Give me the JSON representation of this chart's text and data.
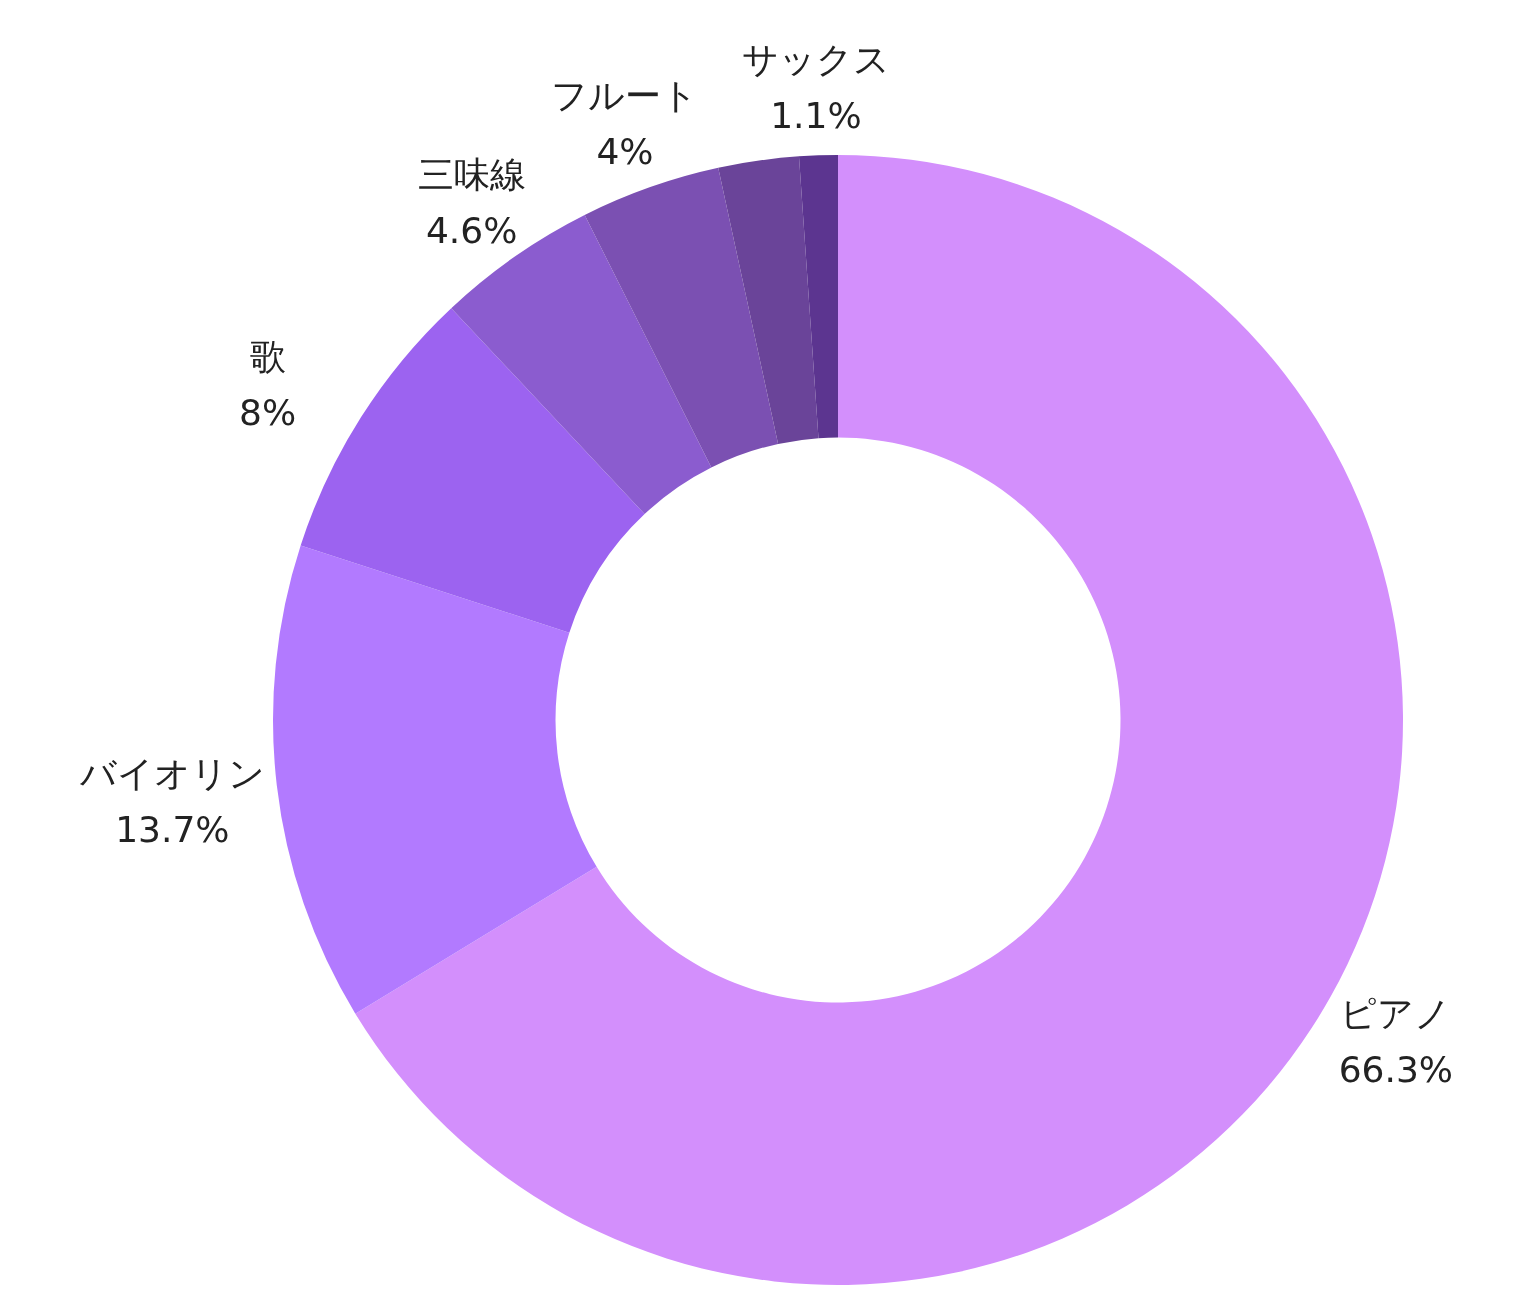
{
  "chart_data": {
    "type": "donut",
    "categories": [
      "ピアノ",
      "バイオリン",
      "歌",
      "三味線",
      "フルート",
      null,
      "サックス"
    ],
    "values": [
      66.3,
      13.7,
      8,
      4.6,
      4,
      2.3,
      1.1
    ],
    "colors": [
      "#d38ffc",
      "#b27aff",
      "#9c63f0",
      "#8b5ccf",
      "#7b50b2",
      "#6a4499",
      "#5c3590"
    ],
    "value_labels": [
      "66.3%",
      "13.7%",
      "8%",
      "4.6%",
      "4%",
      null,
      "1.1%"
    ]
  }
}
